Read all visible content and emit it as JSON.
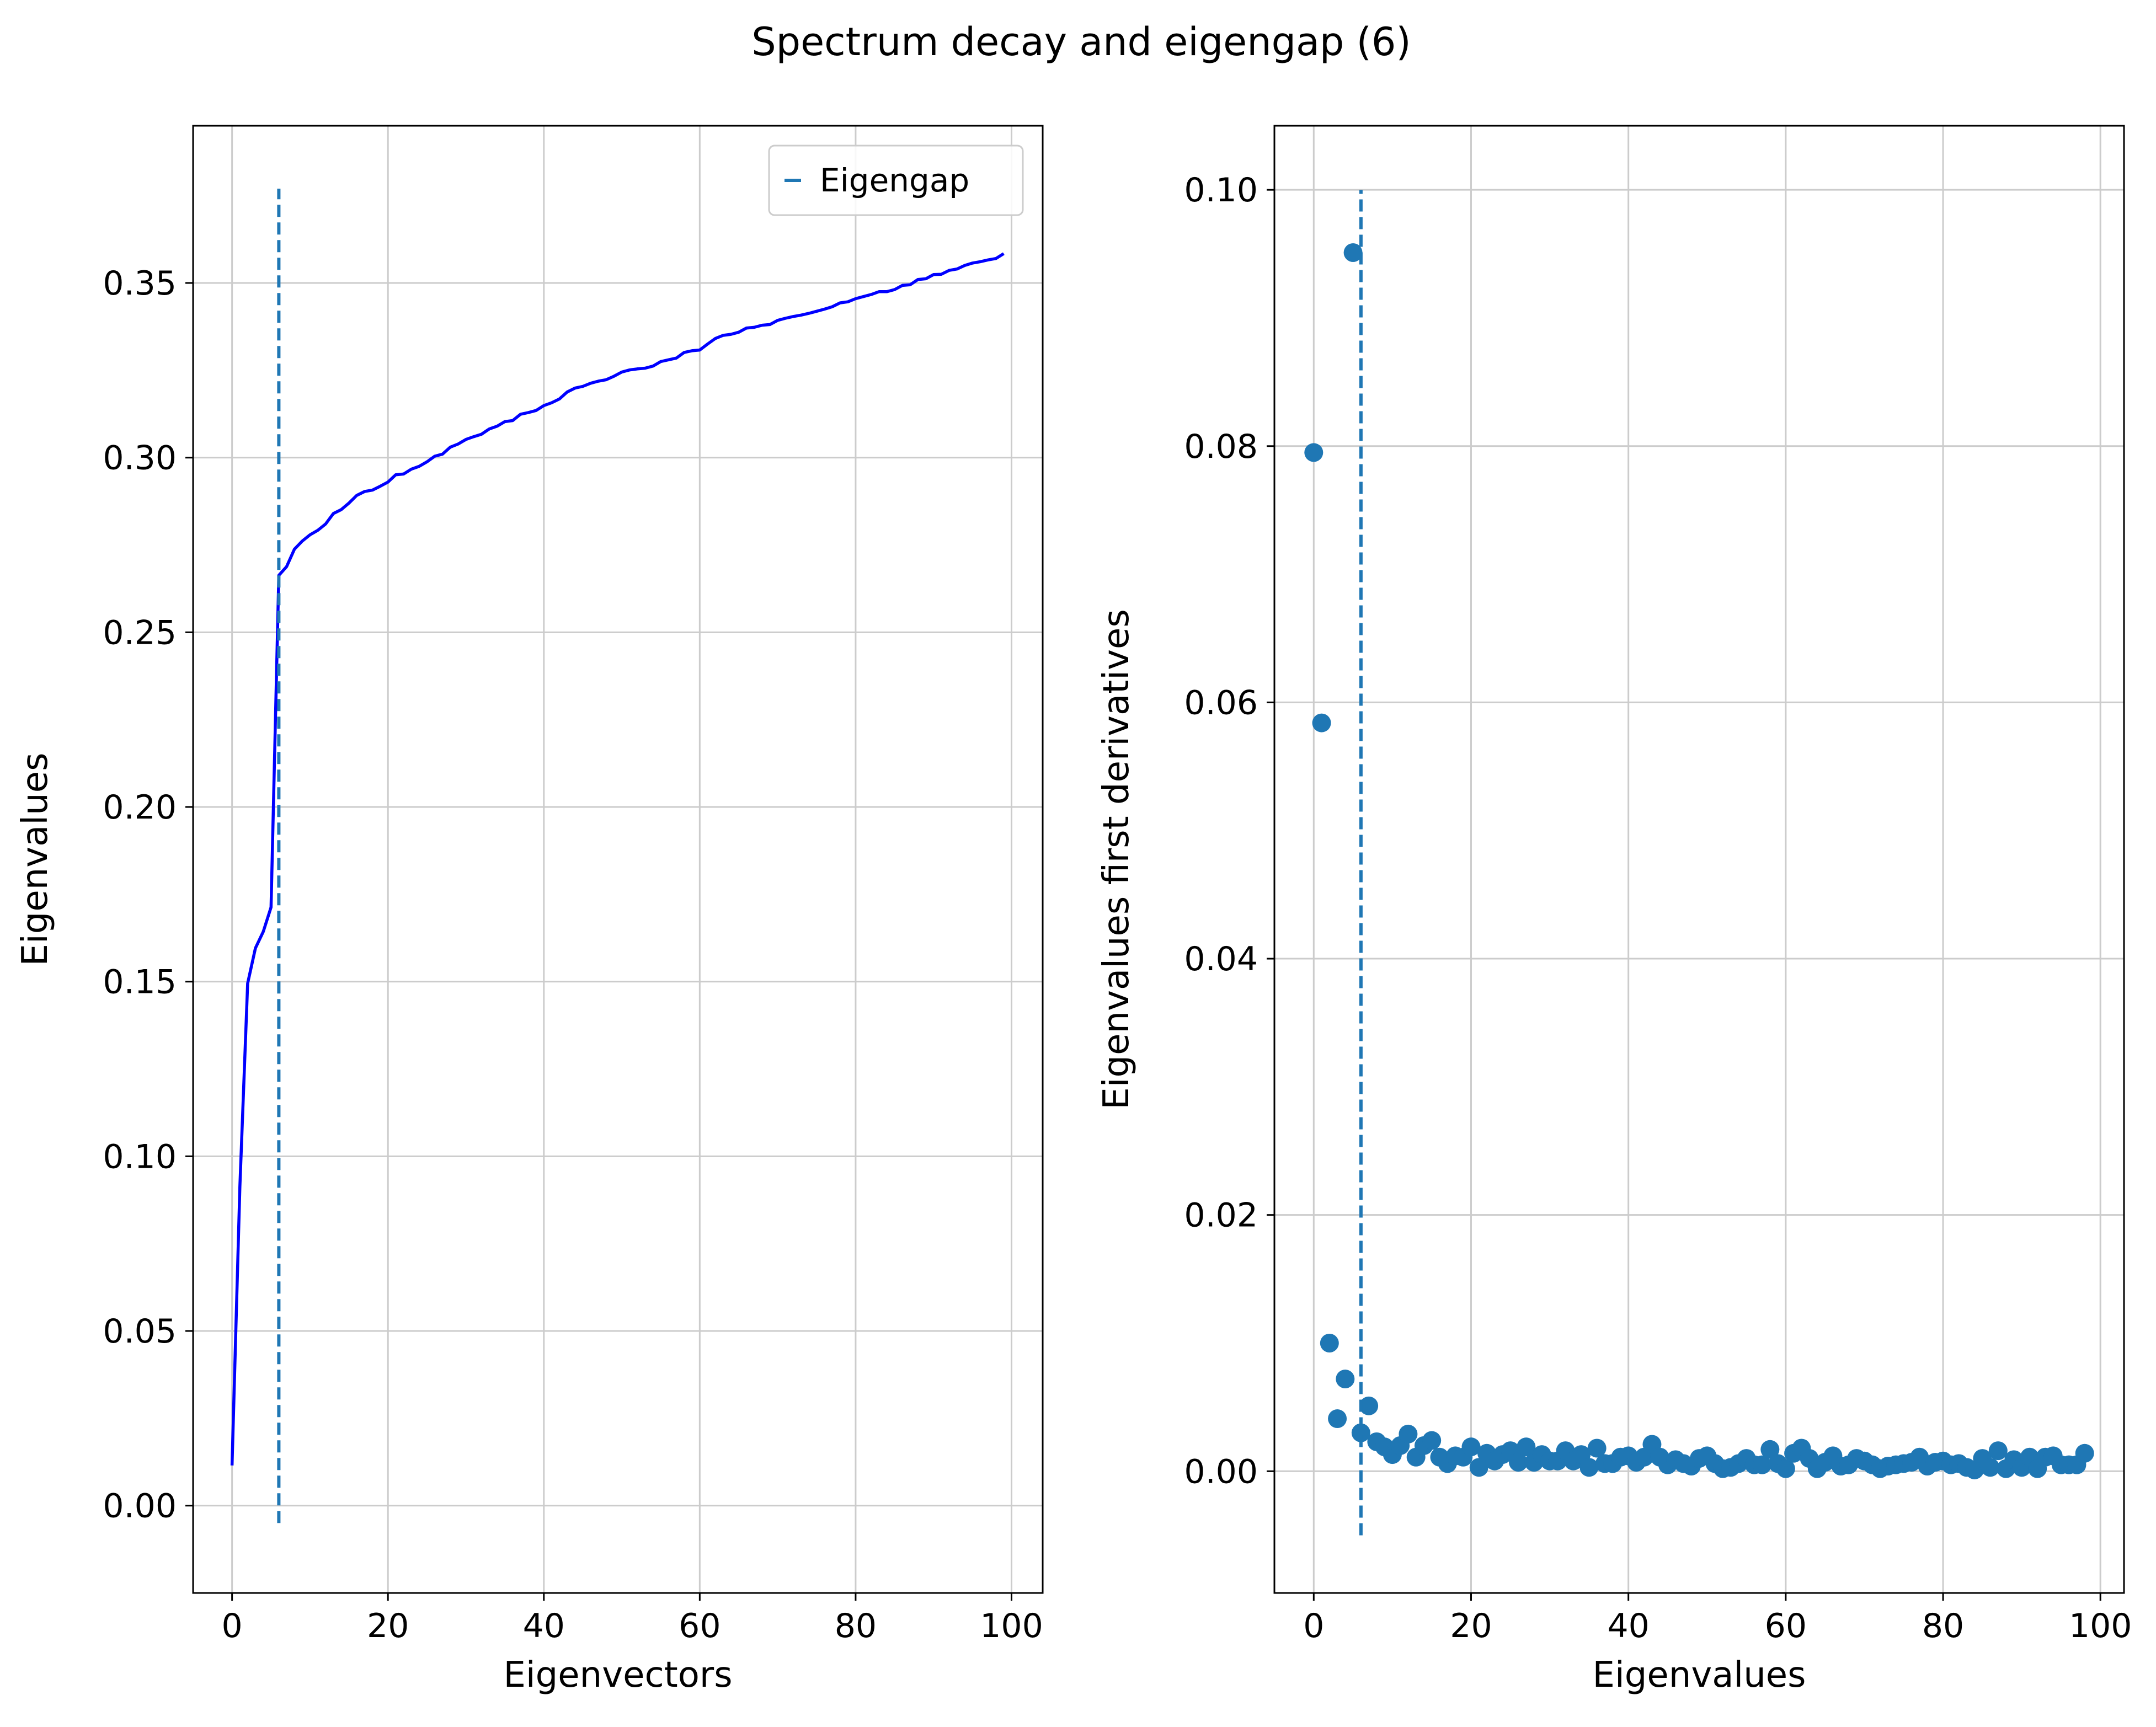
{
  "figure": {
    "suptitle": "Spectrum decay and eigengap (6)"
  },
  "chart_data": [
    {
      "type": "line",
      "title": "",
      "xlabel": "Eigenvectors",
      "ylabel": "Eigenvalues",
      "xlim": [
        -5,
        104
      ],
      "ylim": [
        -0.025,
        0.395
      ],
      "xticks": [
        0,
        20,
        40,
        60,
        80,
        100
      ],
      "xtick_labels": [
        "0",
        "20",
        "40",
        "60",
        "80",
        "100"
      ],
      "yticks": [
        0.0,
        0.05,
        0.1,
        0.15,
        0.2,
        0.25,
        0.3,
        0.35
      ],
      "ytick_labels": [
        "0.00",
        "0.05",
        "0.10",
        "0.15",
        "0.20",
        "0.25",
        "0.30",
        "0.35"
      ],
      "grid": true,
      "legend": {
        "placement": "upper right",
        "entries": [
          "Eigengap"
        ]
      },
      "series": [
        {
          "color": "#0000ff",
          "style": "solid",
          "x": [
            0,
            1,
            2,
            3,
            4,
            5,
            6,
            7,
            8,
            9,
            10,
            11,
            12,
            13,
            14,
            15,
            16,
            17,
            18,
            19,
            20,
            21,
            22,
            23,
            24,
            25,
            26,
            27,
            28,
            29,
            30,
            31,
            32,
            33,
            34,
            35,
            36,
            37,
            38,
            39,
            40,
            41,
            42,
            43,
            44,
            45,
            46,
            47,
            48,
            49,
            50,
            51,
            52,
            53,
            54,
            55,
            56,
            57,
            58,
            59,
            60,
            61,
            62,
            63,
            64,
            65,
            66,
            67,
            68,
            69,
            70,
            71,
            72,
            73,
            74,
            75,
            76,
            77,
            78,
            79,
            80,
            81,
            82,
            83,
            84,
            85,
            86,
            87,
            88,
            89,
            90,
            91,
            92,
            93,
            94,
            95,
            96,
            97,
            98,
            99
          ],
          "y": [
            0.0115,
            0.0913,
            0.1495,
            0.1596,
            0.1643,
            0.1713,
            0.2663,
            0.2688,
            0.2738,
            0.2761,
            0.2779,
            0.2792,
            0.281,
            0.284,
            0.2851,
            0.287,
            0.2892,
            0.2903,
            0.2907,
            0.2918,
            0.293,
            0.2951,
            0.2953,
            0.2967,
            0.2975,
            0.2988,
            0.3004,
            0.301,
            0.303,
            0.3039,
            0.3052,
            0.306,
            0.3067,
            0.3082,
            0.309,
            0.3103,
            0.3106,
            0.3124,
            0.3129,
            0.3135,
            0.3149,
            0.3157,
            0.3168,
            0.3188,
            0.3199,
            0.3204,
            0.3213,
            0.3219,
            0.3223,
            0.3233,
            0.3245,
            0.3251,
            0.3254,
            0.3256,
            0.3262,
            0.3275,
            0.328,
            0.3285,
            0.3301,
            0.3306,
            0.3308,
            0.3325,
            0.3341,
            0.335,
            0.3353,
            0.3359,
            0.3371,
            0.3373,
            0.3379,
            0.3381,
            0.3393,
            0.3399,
            0.3404,
            0.3408,
            0.3413,
            0.3419,
            0.3425,
            0.3432,
            0.3443,
            0.3446,
            0.3455,
            0.3461,
            0.3467,
            0.3475,
            0.3475,
            0.3481,
            0.3493,
            0.3495,
            0.351,
            0.3512,
            0.3524,
            0.3525,
            0.3536,
            0.354,
            0.355,
            0.3557,
            0.3561,
            0.3566,
            0.357,
            0.3584
          ]
        },
        {
          "name": "Eigengap",
          "color": "#1f77b4",
          "style": "dashed",
          "x": [
            6,
            6
          ],
          "y": [
            -0.005,
            0.377
          ]
        }
      ]
    },
    {
      "type": "scatter",
      "title": "",
      "xlabel": "Eigenvalues",
      "ylabel": "Eigenvalues first derivatives",
      "xlim": [
        -5,
        103
      ],
      "ylim": [
        -0.0095,
        0.105
      ],
      "xticks": [
        0,
        20,
        40,
        60,
        80,
        100
      ],
      "xtick_labels": [
        "0",
        "20",
        "40",
        "60",
        "80",
        "100"
      ],
      "yticks": [
        0.0,
        0.02,
        0.04,
        0.06,
        0.08,
        0.1
      ],
      "ytick_labels": [
        "0.00",
        "0.02",
        "0.04",
        "0.06",
        "0.08",
        "0.10"
      ],
      "grid": true,
      "series": [
        {
          "color": "#1f77b4",
          "marker": "circle",
          "x": [
            0,
            1,
            2,
            3,
            4,
            5,
            6,
            7,
            8,
            9,
            10,
            11,
            12,
            13,
            14,
            15,
            16,
            17,
            18,
            19,
            20,
            21,
            22,
            23,
            24,
            25,
            26,
            27,
            28,
            29,
            30,
            31,
            32,
            33,
            34,
            35,
            36,
            37,
            38,
            39,
            40,
            41,
            42,
            43,
            44,
            45,
            46,
            47,
            48,
            49,
            50,
            51,
            52,
            53,
            54,
            55,
            56,
            57,
            58,
            59,
            60,
            61,
            62,
            63,
            64,
            65,
            66,
            67,
            68,
            69,
            70,
            71,
            72,
            73,
            74,
            75,
            76,
            77,
            78,
            79,
            80,
            81,
            82,
            83,
            84,
            85,
            86,
            87,
            88,
            89,
            90,
            91,
            92,
            93,
            94,
            95,
            96,
            97,
            98
          ],
          "y": [
            0.0795,
            0.0584,
            0.01,
            0.0041,
            0.0072,
            0.0951,
            0.003,
            0.0051,
            0.0023,
            0.0019,
            0.0013,
            0.002,
            0.0029,
            0.0011,
            0.002,
            0.0024,
            0.0011,
            0.0006,
            0.0012,
            0.0011,
            0.0019,
            0.0003,
            0.0014,
            0.0008,
            0.0013,
            0.0016,
            0.0007,
            0.0019,
            0.0007,
            0.0013,
            0.0008,
            0.0008,
            0.0016,
            0.0008,
            0.0013,
            0.0003,
            0.0018,
            0.0006,
            0.0006,
            0.0011,
            0.0012,
            0.0007,
            0.0011,
            0.0021,
            0.0011,
            0.0005,
            0.0009,
            0.0006,
            0.0004,
            0.001,
            0.0012,
            0.0006,
            0.0002,
            0.0003,
            0.0006,
            0.001,
            0.0005,
            0.0005,
            0.0017,
            0.0006,
            0.0002,
            0.0014,
            0.0018,
            0.001,
            0.0002,
            0.0007,
            0.0012,
            0.0004,
            0.0005,
            0.001,
            0.0008,
            0.0005,
            0.0002,
            0.0004,
            0.0005,
            0.0006,
            0.0007,
            0.0011,
            0.0004,
            0.0007,
            0.0008,
            0.0005,
            0.0006,
            0.0003,
            0.0001,
            0.001,
            0.0003,
            0.0016,
            0.0002,
            0.0009,
            0.0003,
            0.0011,
            0.0002,
            0.0011,
            0.0012,
            0.0005,
            0.0005,
            0.0005,
            0.0014
          ]
        },
        {
          "color": "#1f77b4",
          "style": "dashed",
          "x": [
            6,
            6
          ],
          "y": [
            -0.005,
            0.1
          ]
        }
      ]
    }
  ]
}
